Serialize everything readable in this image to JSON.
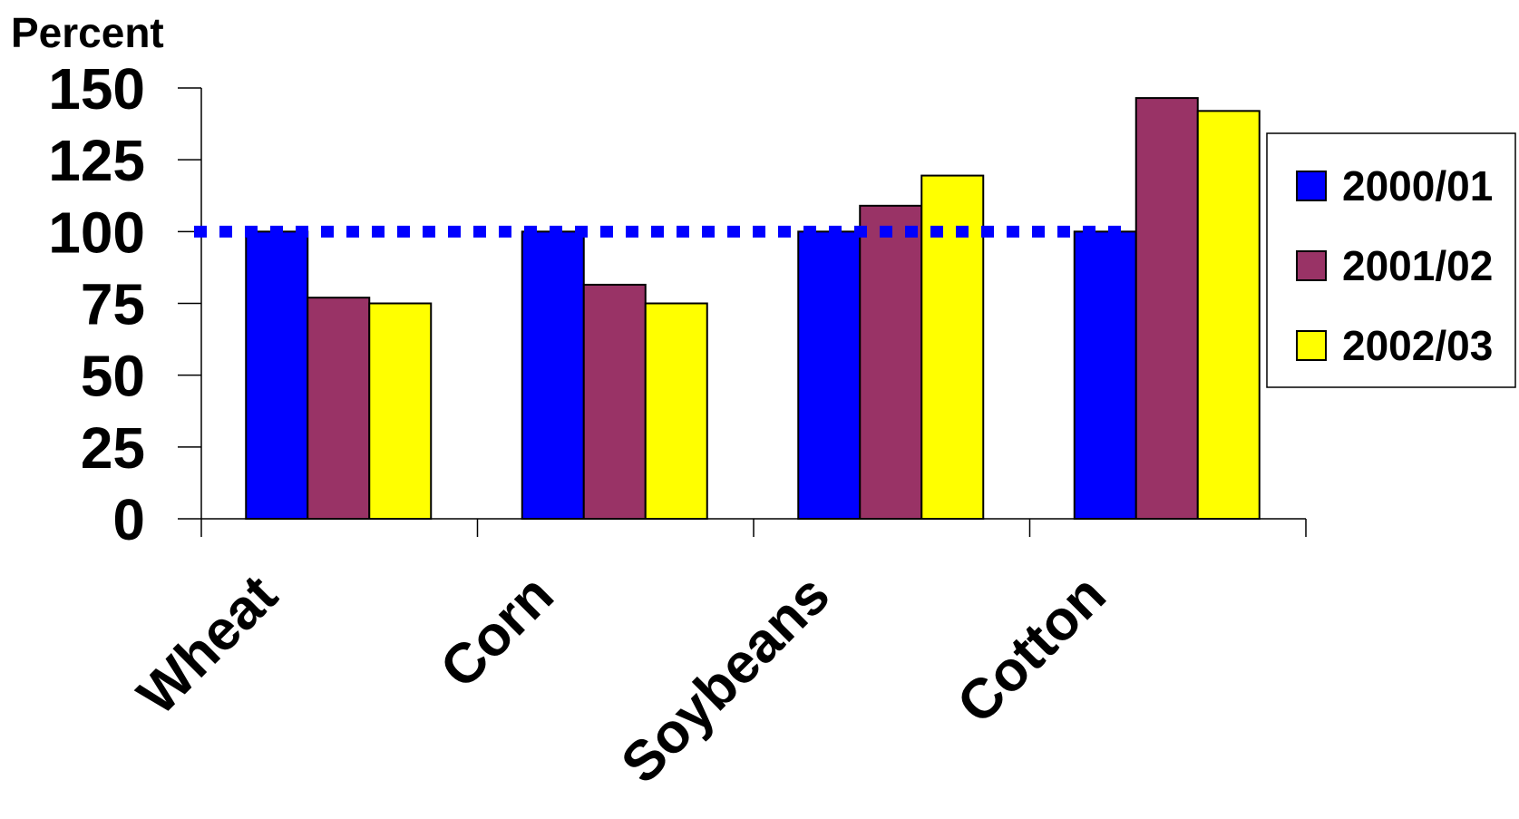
{
  "chart_data": {
    "type": "bar",
    "ylabel": "Percent",
    "ylim": [
      0,
      150
    ],
    "yticks": [
      0,
      25,
      50,
      75,
      100,
      125,
      150
    ],
    "categories": [
      "Wheat",
      "Corn",
      "Soybeans",
      "Cotton"
    ],
    "series": [
      {
        "name": "2000/01",
        "color": "#0000ff",
        "values": [
          100,
          100,
          100,
          100
        ]
      },
      {
        "name": "2001/02",
        "color": "#993366",
        "values": [
          77,
          81.5,
          109,
          146.5
        ]
      },
      {
        "name": "2002/03",
        "color": "#ffff00",
        "values": [
          75,
          75,
          119.5,
          142
        ]
      }
    ],
    "reference_line": {
      "value": 100,
      "color": "#0000ff",
      "style": "dotted"
    },
    "grid": false,
    "legend_position": "right"
  }
}
